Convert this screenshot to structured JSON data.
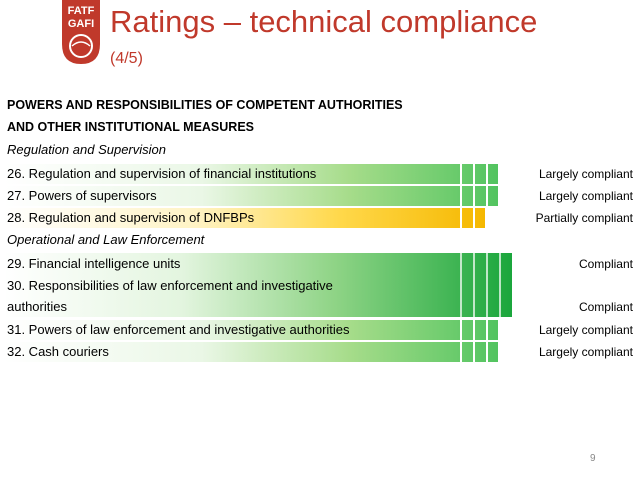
{
  "logo": {
    "line1": "FATF",
    "line2": "GAFI"
  },
  "title": "Ratings – technical compliance",
  "subtitle": "(4/5)",
  "section_header": {
    "line1": "POWERS AND RESPONSIBILITIES OF COMPETENT AUTHORITIES",
    "line2": "AND OTHER INSTITUTIONAL MEASURES"
  },
  "groups": [
    {
      "label": "Regulation and Supervision"
    },
    {
      "label": "Operational and Law Enforcement"
    }
  ],
  "items": [
    {
      "text": "26. Regulation and supervision of financial institutions",
      "rating": "Largely compliant",
      "level": "largely",
      "color": "#2db84b"
    },
    {
      "text": "27. Powers of supervisors",
      "rating": "Largely compliant",
      "level": "largely",
      "color": "#2db84b"
    },
    {
      "text": "28. Regulation and supervision of DNFBPs",
      "rating": "Partially compliant",
      "level": "partially",
      "color": "#f5b800"
    },
    {
      "text": "29. Financial intelligence units",
      "rating": "Compliant",
      "level": "compliant",
      "color": "#1aa63c"
    },
    {
      "text_line1": "30. Responsibilities of law enforcement and investigative",
      "text_line2": "authorities",
      "rating": "Compliant",
      "level": "compliant",
      "color": "#1aa63c"
    },
    {
      "text": "31. Powers of law enforcement and investigative authorities",
      "rating": "Largely compliant",
      "level": "largely",
      "color": "#2db84b"
    },
    {
      "text": "32. Cash couriers",
      "rating": "Largely compliant",
      "level": "largely",
      "color": "#2db84b"
    }
  ],
  "page_number": "9"
}
